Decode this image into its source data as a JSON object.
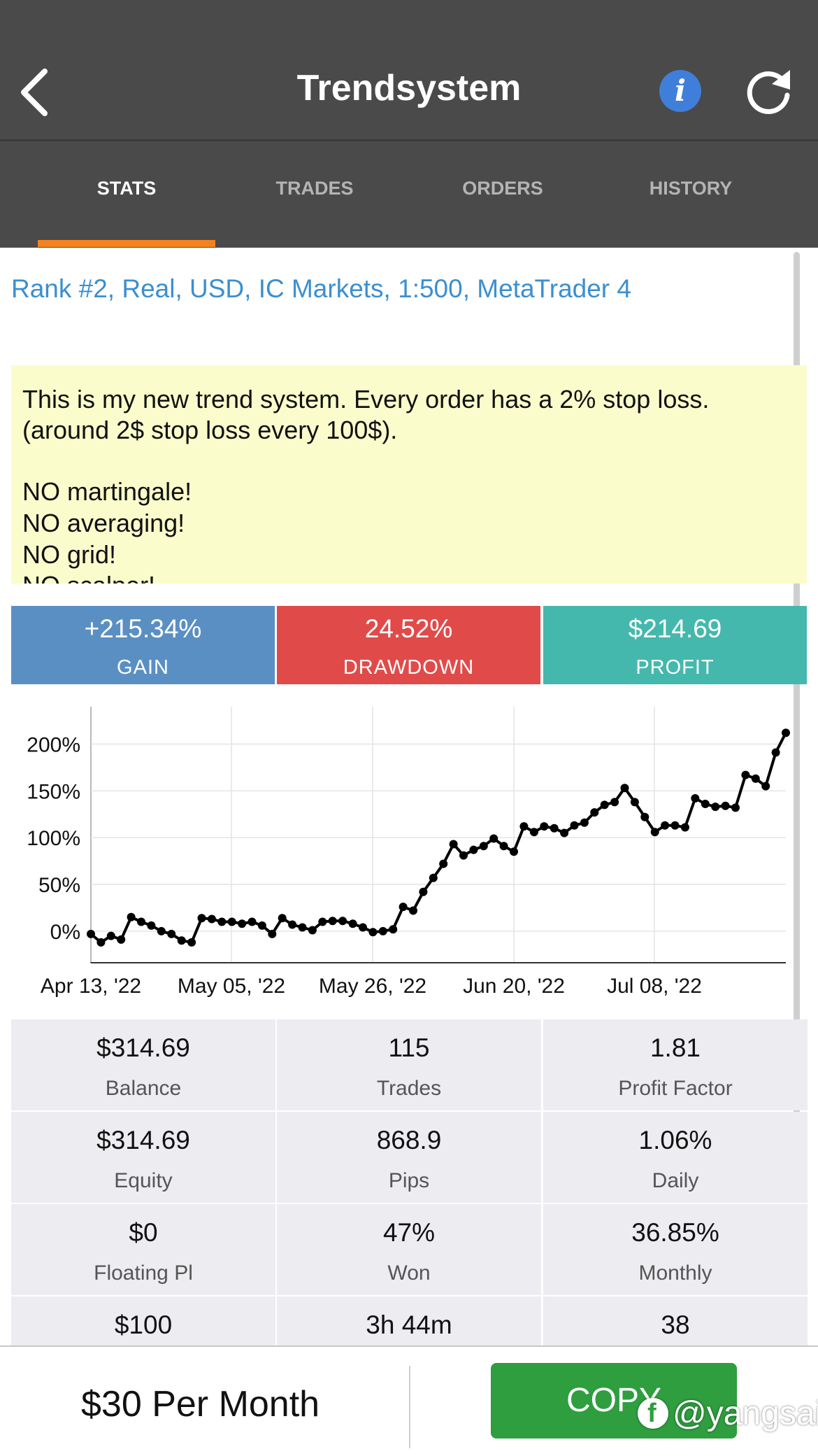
{
  "header": {
    "title": "Trendsystem",
    "info_glyph": "i",
    "icons": [
      "back-chevron-icon",
      "info-icon",
      "refresh-icon"
    ]
  },
  "tabs": [
    {
      "label": "STATS",
      "active": true
    },
    {
      "label": "TRADES",
      "active": false
    },
    {
      "label": "ORDERS",
      "active": false
    },
    {
      "label": "HISTORY",
      "active": false
    }
  ],
  "account_line": "Rank #2, Real, USD, IC Markets, 1:500, MetaTrader 4",
  "description": [
    "This is my new trend system. Every order has a 2% stop loss.",
    "(around 2$ stop loss every 100$).",
    "",
    "NO martingale!",
    "NO averaging!",
    "NO grid!",
    "NO scalper!"
  ],
  "kpis": [
    {
      "value": "+215.34%",
      "label": "GAIN",
      "color": "#5a8fc3"
    },
    {
      "value": "24.52%",
      "label": "DRAWDOWN",
      "color": "#e04b4a"
    },
    {
      "value": "$214.69",
      "label": "PROFIT",
      "color": "#45b8ad"
    }
  ],
  "chart_data": {
    "type": "line",
    "y_ticks": [
      "200%",
      "150%",
      "100%",
      "50%",
      "0%"
    ],
    "x_ticks": [
      "Apr 13, '22",
      "May 05, '22",
      "May 26, '22",
      "Jun 20, '22",
      "Jul 08, '22"
    ],
    "ylim": [
      -33,
      240
    ],
    "grid": true,
    "series": [
      {
        "values": [
          -3,
          -12,
          -5,
          -9,
          15,
          10,
          6,
          0,
          -3,
          -10,
          -12,
          14,
          13,
          10,
          10,
          8,
          10,
          6,
          -3,
          14,
          7,
          4,
          1,
          10,
          11,
          11,
          8,
          4,
          -1,
          0,
          2,
          26,
          22,
          42,
          57,
          72,
          93,
          81,
          87,
          91,
          99,
          91,
          85,
          112,
          106,
          112,
          110,
          105,
          113,
          116,
          127,
          135,
          138,
          153,
          138,
          122,
          106,
          113,
          113,
          111,
          142,
          136,
          133,
          134,
          132,
          167,
          163,
          155,
          191,
          212
        ]
      }
    ]
  },
  "stats": [
    {
      "value": "$314.69",
      "label": "Balance"
    },
    {
      "value": "115",
      "label": "Trades"
    },
    {
      "value": "1.81",
      "label": "Profit Factor"
    },
    {
      "value": "$314.69",
      "label": "Equity"
    },
    {
      "value": "868.9",
      "label": "Pips"
    },
    {
      "value": "1.06%",
      "label": "Daily"
    },
    {
      "value": "$0",
      "label": "Floating Pl"
    },
    {
      "value": "47%",
      "label": "Won"
    },
    {
      "value": "36.85%",
      "label": "Monthly"
    },
    {
      "value": "$100",
      "label": ""
    },
    {
      "value": "3h 44m",
      "label": ""
    },
    {
      "value": "38",
      "label": ""
    }
  ],
  "bottom": {
    "price": "$30 Per Month",
    "copy_label": "COPY",
    "watermark": "@yangsail"
  }
}
